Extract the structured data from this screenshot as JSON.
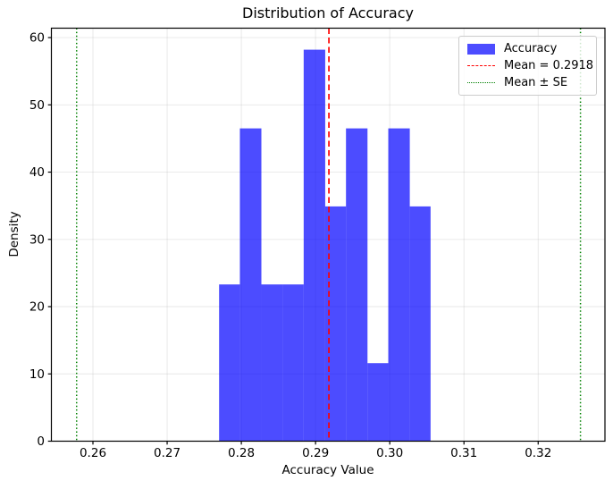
{
  "figure": {
    "title": "Distribution of Accuracy",
    "xlabel": "Accuracy Value",
    "ylabel": "Density"
  },
  "chart_data": {
    "type": "bar",
    "subtype": "histogram",
    "title": "Distribution of Accuracy",
    "xlabel": "Accuracy Value",
    "ylabel": "Density",
    "bin_edges": [
      0.277,
      0.2798,
      0.2827,
      0.2856,
      0.2884,
      0.2913,
      0.2941,
      0.297,
      0.2998,
      0.3027,
      0.3055
    ],
    "densities": [
      23.3,
      46.5,
      23.3,
      23.3,
      58.2,
      34.9,
      46.5,
      11.6,
      46.5,
      34.9
    ],
    "mean": 0.2918,
    "se": 0.034,
    "mean_minus_se": 0.2578,
    "mean_plus_se": 0.3257,
    "xlim": [
      0.2544,
      0.329
    ],
    "ylim": [
      0,
      61.4
    ],
    "xticks": [
      0.26,
      0.27,
      0.28,
      0.29,
      0.3,
      0.31,
      0.32
    ],
    "xtick_labels": [
      "0.26",
      "0.27",
      "0.28",
      "0.29",
      "0.30",
      "0.31",
      "0.32"
    ],
    "yticks": [
      0,
      10,
      20,
      30,
      40,
      50,
      60
    ],
    "ytick_labels": [
      "0",
      "10",
      "20",
      "30",
      "40",
      "50",
      "60"
    ],
    "grid": true,
    "legend": {
      "position": "upper right",
      "entries": [
        {
          "type": "patch",
          "color": "#0000ff",
          "opacity": 0.7,
          "label": "Accuracy"
        },
        {
          "type": "dashed-line",
          "color": "#ff0000",
          "label": "Mean = 0.2918"
        },
        {
          "type": "dotted-line",
          "color": "#008000",
          "label": "Mean ± SE"
        }
      ]
    },
    "colors": {
      "bars": "#0000ff",
      "bar_opacity": 0.7,
      "mean_line": "#ff0000",
      "se_line": "#008000",
      "grid": "#b0b0b0",
      "grid_opacity": 0.3,
      "spine": "#000000",
      "background": "#ffffff"
    }
  }
}
